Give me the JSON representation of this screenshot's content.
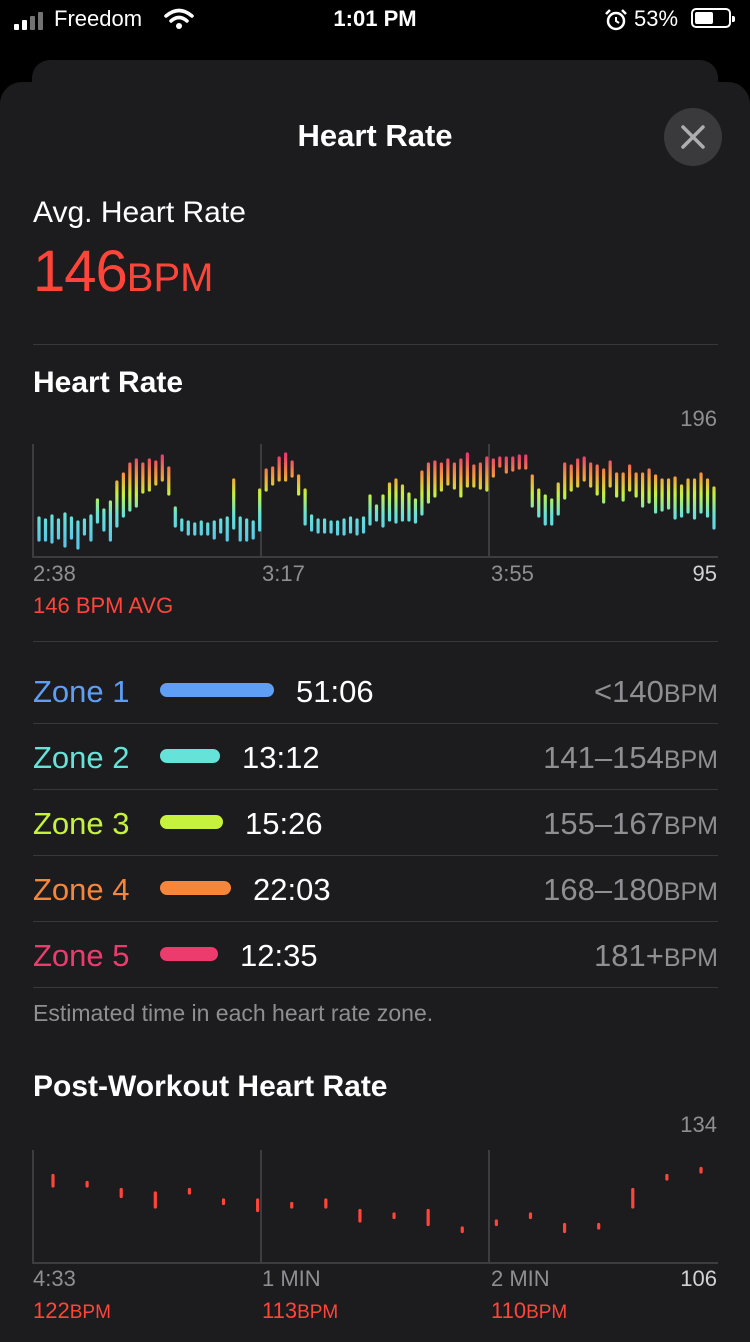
{
  "status_bar": {
    "carrier": "Freedom",
    "time": "1:01 PM",
    "battery_pct": "53%"
  },
  "sheet": {
    "title": "Heart Rate"
  },
  "summary": {
    "label": "Avg. Heart Rate",
    "value": "146",
    "unit": "BPM"
  },
  "heart_rate_chart": {
    "title": "Heart Rate",
    "y_max_label": "196",
    "y_min_label": "95",
    "x_labels": [
      "2:38",
      "3:17",
      "3:55"
    ],
    "avg_label": "146 BPM AVG"
  },
  "zones": [
    {
      "name": "Zone 1",
      "time": "51:06",
      "range": "<140",
      "unit": "BPM",
      "color": "#5e9ff5",
      "share": 0.45
    },
    {
      "name": "Zone 2",
      "time": "13:12",
      "range": "141–154",
      "unit": "BPM",
      "color": "#66e3d9",
      "share": 0.12
    },
    {
      "name": "Zone 3",
      "time": "15:26",
      "range": "155–167",
      "unit": "BPM",
      "color": "#c6f23d",
      "share": 0.14
    },
    {
      "name": "Zone 4",
      "time": "22:03",
      "range": "168–180",
      "unit": "BPM",
      "color": "#f5863a",
      "share": 0.19
    },
    {
      "name": "Zone 5",
      "time": "12:35",
      "range": "181+",
      "unit": "BPM",
      "color": "#ec3c6e",
      "share": 0.11
    }
  ],
  "zones_footnote": "Estimated time in each heart rate zone.",
  "post_workout_chart": {
    "title": "Post-Workout Heart Rate",
    "y_max_label": "134",
    "y_min_label": "106",
    "x_labels": [
      "4:33",
      "1 MIN",
      "2 MIN"
    ],
    "readings": [
      {
        "value": "122",
        "unit": "BPM"
      },
      {
        "value": "113",
        "unit": "BPM"
      },
      {
        "value": "110",
        "unit": "BPM"
      }
    ]
  },
  "chart_data": [
    {
      "type": "bar",
      "title": "Heart Rate",
      "ylim": [
        95,
        196
      ],
      "x_tick_labels": [
        "2:38",
        "3:17",
        "3:55"
      ],
      "series": [
        {
          "ranges": [
            [
              130,
              141
            ],
            [
              130,
              140
            ],
            [
              129,
              142
            ],
            [
              131,
              140
            ],
            [
              127,
              143
            ],
            [
              131,
              141
            ],
            [
              126,
              139
            ],
            [
              133,
              140
            ],
            [
              130,
              142
            ],
            [
              139,
              150
            ],
            [
              135,
              145
            ],
            [
              130,
              149
            ],
            [
              137,
              159
            ],
            [
              142,
              163
            ],
            [
              145,
              168
            ],
            [
              147,
              170
            ],
            [
              154,
              168
            ],
            [
              155,
              170
            ],
            [
              158,
              169
            ],
            [
              160,
              172
            ],
            [
              153,
              166
            ],
            [
              137,
              146
            ],
            [
              135,
              140
            ],
            [
              133,
              139
            ],
            [
              133,
              138
            ],
            [
              133,
              139
            ],
            [
              133,
              138
            ],
            [
              131,
              139
            ],
            [
              134,
              140
            ],
            [
              130,
              141
            ],
            [
              136,
              160
            ],
            [
              130,
              141
            ],
            [
              130,
              140
            ],
            [
              131,
              139
            ],
            [
              135,
              155
            ],
            [
              155,
              165
            ],
            [
              158,
              166
            ],
            [
              160,
              171
            ],
            [
              160,
              173
            ],
            [
              162,
              169
            ],
            [
              153,
              162
            ],
            [
              138,
              155
            ],
            [
              135,
              142
            ],
            [
              134,
              140
            ],
            [
              134,
              140
            ],
            [
              134,
              139
            ],
            [
              133,
              139
            ],
            [
              133,
              140
            ],
            [
              134,
              141
            ],
            [
              133,
              140
            ],
            [
              134,
              141
            ],
            [
              138,
              152
            ],
            [
              140,
              147
            ],
            [
              137,
              152
            ],
            [
              140,
              158
            ],
            [
              139,
              160
            ],
            [
              140,
              157
            ],
            [
              140,
              153
            ],
            [
              139,
              150
            ],
            [
              143,
              164
            ],
            [
              149,
              168
            ],
            [
              152,
              169
            ],
            [
              155,
              168
            ],
            [
              158,
              170
            ],
            [
              156,
              168
            ],
            [
              152,
              170
            ],
            [
              157,
              173
            ],
            [
              157,
              167
            ],
            [
              156,
              168
            ],
            [
              155,
              171
            ],
            [
              162,
              170
            ],
            [
              167,
              171
            ],
            [
              164,
              171
            ],
            [
              165,
              171
            ],
            [
              166,
              172
            ],
            [
              166,
              172
            ],
            [
              147,
              162
            ],
            [
              142,
              155
            ],
            [
              138,
              152
            ],
            [
              138,
              150
            ],
            [
              143,
              158
            ],
            [
              151,
              168
            ],
            [
              155,
              167
            ],
            [
              157,
              170
            ],
            [
              160,
              171
            ],
            [
              157,
              168
            ],
            [
              153,
              167
            ],
            [
              149,
              165
            ],
            [
              157,
              169
            ],
            [
              152,
              163
            ],
            [
              150,
              163
            ],
            [
              155,
              167
            ],
            [
              152,
              163
            ],
            [
              147,
              163
            ],
            [
              149,
              165
            ],
            [
              144,
              162
            ],
            [
              145,
              160
            ],
            [
              146,
              160
            ],
            [
              141,
              161
            ],
            [
              142,
              157
            ],
            [
              144,
              160
            ],
            [
              141,
              160
            ],
            [
              144,
              163
            ],
            [
              142,
              160
            ],
            [
              136,
              156
            ]
          ]
        }
      ]
    },
    {
      "type": "bar",
      "title": "Post-Workout Heart Rate",
      "ylim": [
        106,
        134
      ],
      "x_tick_labels": [
        "4:33",
        "1 MIN",
        "2 MIN"
      ],
      "series": [
        {
          "ranges": [
            [
              126,
              129
            ],
            [
              126,
              127
            ],
            [
              123,
              125
            ],
            [
              120,
              124
            ],
            [
              124,
              125
            ],
            [
              121,
              122
            ],
            [
              119,
              122
            ],
            [
              120,
              121
            ],
            [
              120,
              122
            ],
            [
              116,
              119
            ],
            [
              117,
              118
            ],
            [
              115,
              119
            ],
            [
              113,
              114
            ],
            [
              115,
              116
            ],
            [
              117,
              118
            ],
            [
              113,
              115
            ],
            [
              114,
              115
            ],
            [
              120,
              125
            ],
            [
              128,
              129
            ],
            [
              130,
              131
            ]
          ]
        }
      ]
    }
  ]
}
